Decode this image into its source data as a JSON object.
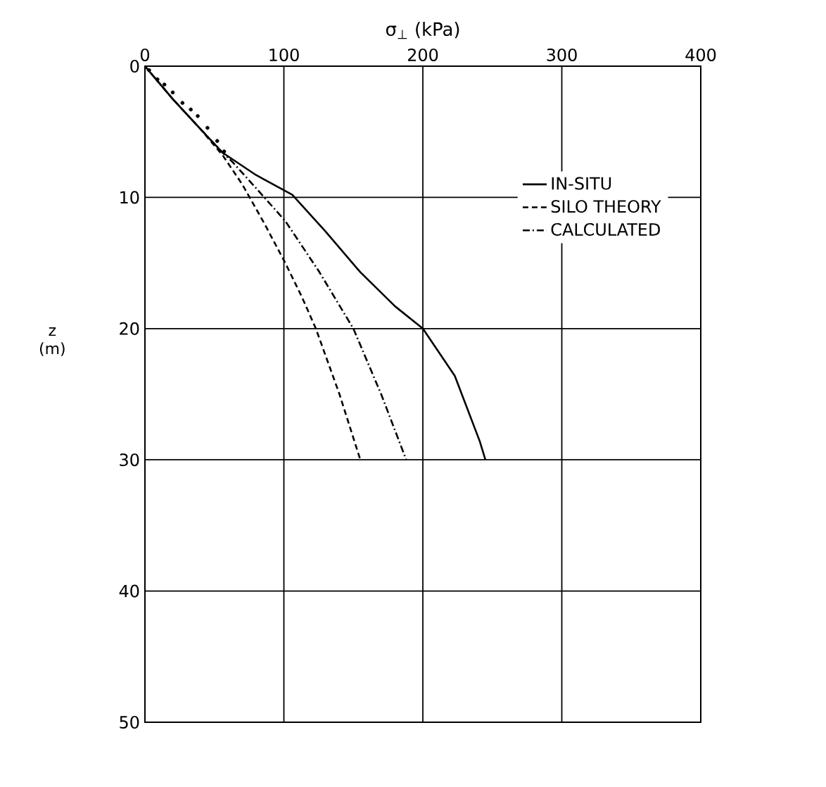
{
  "chart_data": {
    "type": "line",
    "xlabel": "σ$_{⊥}$ (kPa)",
    "ylabel": "z (m)",
    "xlim": [
      0,
      400
    ],
    "xticks": [
      0,
      100,
      200,
      300,
      400
    ],
    "ylim": [
      50,
      0
    ],
    "yticks": [
      0,
      10,
      20,
      30,
      40,
      50
    ],
    "grid": true,
    "legend": "right",
    "series": [
      {
        "name": "IN-SITU",
        "color": "#000000",
        "line_style": "solid",
        "x": [
          0,
          20,
          40,
          56,
          80,
          106,
          130,
          155,
          180,
          200,
          223,
          241,
          245
        ],
        "values": [
          0,
          2.5,
          4.8,
          6.6,
          8.3,
          9.8,
          12.6,
          15.7,
          18.3,
          20,
          23.6,
          28.6,
          30
        ]
      },
      {
        "name": "SILO THEORY",
        "color": "#000000",
        "line_style": "dashed",
        "x": [
          0,
          20,
          40,
          56,
          70,
          86,
          101,
          113,
          123,
          140,
          155
        ],
        "values": [
          0,
          2.5,
          4.8,
          6.8,
          9,
          12,
          15,
          17.6,
          20,
          25,
          30
        ]
      },
      {
        "name": "CALCULATED",
        "color": "#000000",
        "line_style": "dash-dot",
        "x": [
          0,
          20,
          40,
          56,
          63,
          80,
          101,
          125,
          150,
          170,
          183,
          188
        ],
        "values": [
          0,
          2.5,
          4.8,
          6.6,
          7.3,
          9.3,
          11.8,
          15.6,
          20,
          25,
          28.6,
          30
        ]
      },
      {
        "type": "scatter",
        "color": "#000000",
        "marker": "circle",
        "x": [
          3,
          9,
          14,
          20,
          27,
          33,
          38,
          45,
          52,
          57
        ],
        "values": [
          0.3,
          1,
          1.4,
          2,
          2.8,
          3.3,
          3.8,
          4.7,
          5.7,
          6.5
        ]
      }
    ]
  }
}
